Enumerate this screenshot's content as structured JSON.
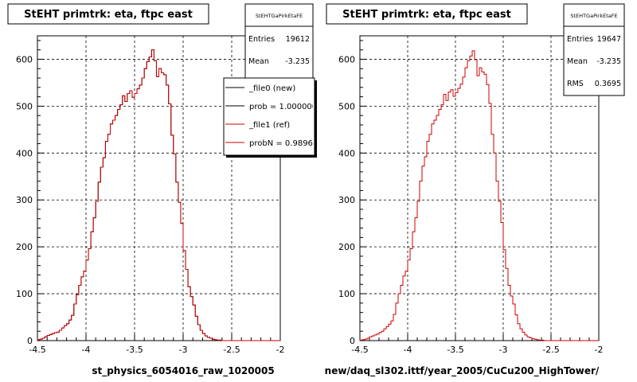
{
  "footer_text": "",
  "colors": {
    "new": "#000000",
    "ref": "#cc0000",
    "grid": "#000000",
    "background": "#ffffff"
  },
  "chart_data": [
    {
      "type": "line",
      "style": "step-histogram",
      "title": "StEHT primtrk: eta, ftpc east",
      "xlabel": "st_physics_6054016_raw_1020005",
      "ylabel": "",
      "xlim": [
        -4.5,
        -2.0
      ],
      "ylim": [
        0,
        650
      ],
      "xticks": [
        "-4.5",
        "-4",
        "-3.5",
        "-3",
        "-2.5",
        "-2"
      ],
      "yticks": [
        "0",
        "100",
        "200",
        "300",
        "400",
        "500",
        "600"
      ],
      "grid": true,
      "stats": {
        "title": "StEHTGaPirkEtaFE",
        "rows": [
          {
            "label": "Entries",
            "value": "19612"
          },
          {
            "label": "Mean",
            "value": "-3.235"
          }
        ]
      },
      "legend": {
        "placement": "top-right",
        "entries": [
          {
            "text": "_file0 (new)",
            "series": "new"
          },
          {
            "text": "prob = 1.000000",
            "series": "new"
          },
          {
            "text": "_file1 (ref)",
            "series": "ref"
          },
          {
            "text": "probN = 0.989660",
            "series": "ref"
          }
        ]
      },
      "bin_width": 0.025,
      "x_start": -4.5,
      "series": [
        {
          "name": "_file0 (new)",
          "key": "new",
          "values": [
            2,
            3,
            5,
            8,
            11,
            13,
            15,
            17,
            18,
            22,
            27,
            32,
            36,
            44,
            54,
            78,
            98,
            118,
            136,
            148,
            172,
            196,
            232,
            262,
            297,
            338,
            370,
            390,
            425,
            440,
            462,
            470,
            480,
            493,
            503,
            522,
            510,
            527,
            533,
            519,
            527,
            537,
            545,
            560,
            580,
            595,
            605,
            620,
            597,
            563,
            580,
            571,
            567,
            545,
            505,
            438,
            398,
            338,
            295,
            250,
            192,
            152,
            115,
            94,
            76,
            52,
            34,
            22,
            15,
            10,
            7,
            5,
            3,
            2,
            1,
            1,
            0,
            0,
            0,
            0,
            0,
            0,
            0,
            0,
            0,
            0,
            0,
            0,
            0,
            0,
            0,
            0,
            0,
            0,
            0,
            0,
            0,
            0,
            0,
            0
          ]
        },
        {
          "name": "_file1 (ref)",
          "key": "ref",
          "values": [
            2,
            3,
            5,
            8,
            11,
            13,
            15,
            17,
            18,
            22,
            27,
            32,
            36,
            44,
            54,
            78,
            98,
            118,
            136,
            148,
            172,
            196,
            232,
            262,
            297,
            338,
            370,
            390,
            425,
            440,
            462,
            470,
            480,
            493,
            503,
            522,
            510,
            527,
            533,
            519,
            527,
            537,
            545,
            560,
            580,
            595,
            605,
            620,
            597,
            563,
            580,
            571,
            567,
            545,
            505,
            438,
            398,
            338,
            295,
            250,
            192,
            152,
            115,
            94,
            76,
            52,
            34,
            22,
            15,
            10,
            7,
            5,
            3,
            2,
            1,
            1,
            0,
            0,
            0,
            0,
            0,
            0,
            0,
            0,
            0,
            0,
            0,
            0,
            0,
            0,
            0,
            0,
            0,
            0,
            0,
            0,
            0,
            0,
            0,
            0
          ]
        }
      ]
    },
    {
      "type": "line",
      "style": "step-histogram",
      "title": "StEHT primtrk: eta, ftpc east",
      "xlabel": "new/daq_sl302.ittf/year_2005/CuCu200_HighTower/",
      "ylabel": "",
      "xlim": [
        -4.5,
        -2.0
      ],
      "ylim": [
        0,
        650
      ],
      "xticks": [
        "-4.5",
        "-4",
        "-3.5",
        "-3",
        "-2.5",
        "-2"
      ],
      "yticks": [
        "0",
        "100",
        "200",
        "300",
        "400",
        "500",
        "600"
      ],
      "grid": true,
      "stats": {
        "title": "StEHTGaPirkEtaFE",
        "rows": [
          {
            "label": "Entries",
            "value": "19647"
          },
          {
            "label": "Mean",
            "value": "-3.235"
          },
          {
            "label": "RMS",
            "value": "0.3695"
          }
        ]
      },
      "bin_width": 0.025,
      "x_start": -4.5,
      "series": [
        {
          "name": "_file1 (ref)",
          "key": "ref",
          "values": [
            1,
            2,
            3,
            5,
            8,
            10,
            12,
            14,
            17,
            20,
            25,
            30,
            35,
            42,
            56,
            80,
            100,
            118,
            138,
            148,
            172,
            196,
            232,
            262,
            297,
            340,
            372,
            392,
            425,
            440,
            462,
            470,
            480,
            493,
            503,
            525,
            512,
            530,
            535,
            521,
            529,
            538,
            547,
            562,
            582,
            597,
            607,
            618,
            599,
            565,
            582,
            573,
            568,
            546,
            506,
            440,
            400,
            340,
            297,
            252,
            194,
            154,
            118,
            95,
            78,
            55,
            36,
            25,
            18,
            12,
            8,
            6,
            4,
            3,
            2,
            1,
            1,
            0,
            0,
            0,
            0,
            0,
            0,
            0,
            0,
            0,
            0,
            0,
            0,
            0,
            0,
            0,
            0,
            0,
            0,
            0,
            0,
            0,
            0,
            0
          ]
        }
      ]
    }
  ]
}
